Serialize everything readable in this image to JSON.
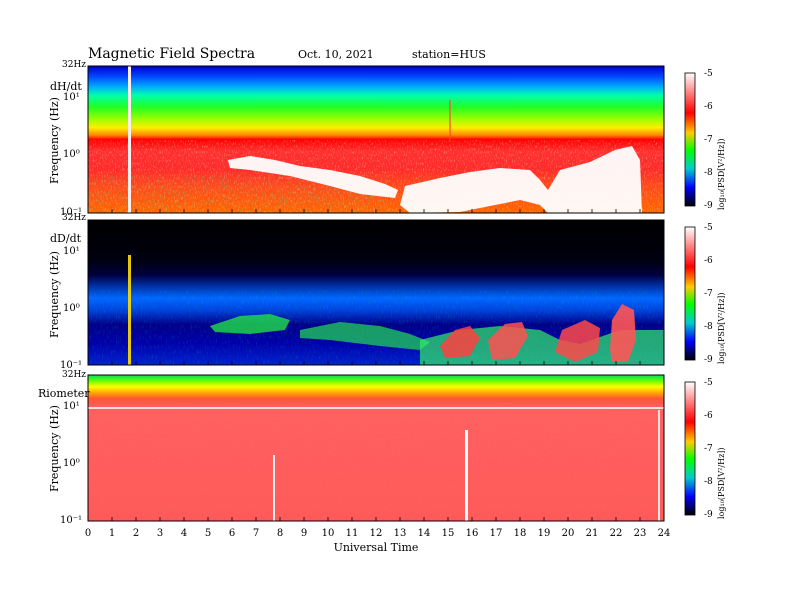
{
  "header": {
    "title": "Magnetic Field Spectra",
    "date": "Oct. 10, 2021",
    "station": "station=HUS"
  },
  "chart_data": [
    {
      "type": "heatmap",
      "panel_label": "dH/dt",
      "top_label": "32Hz",
      "ylabel": "Frequency (Hz)",
      "y_ticks": [
        "10¹",
        "10⁰",
        "10⁻¹"
      ],
      "xlabel": "Universal Time",
      "xlim": [
        0,
        24
      ],
      "colorbar": {
        "label": "log₁₀(PSD[V²/Hz])",
        "ticks": [
          "-5",
          "-6",
          "-7",
          "-8",
          "-9"
        ],
        "range": [
          -9,
          -5
        ]
      },
      "features": "Broadband red/yellow activity below ~1 Hz; saturated white regions from ~6 to 23 UT; vertical impulse near 1.8 UT"
    },
    {
      "type": "heatmap",
      "panel_label": "dD/dt",
      "top_label": "32Hz",
      "ylabel": "Frequency (Hz)",
      "y_ticks": [
        "10¹",
        "10⁰",
        "10⁻¹"
      ],
      "xlabel": "Universal Time",
      "xlim": [
        0,
        24
      ],
      "colorbar": {
        "label": "log₁₀(PSD[V²/Hz])",
        "ticks": [
          "-5",
          "-6",
          "-7",
          "-8",
          "-9"
        ],
        "range": [
          -9,
          -5
        ]
      },
      "features": "Mostly black/blue background; green and red bursts at low frequency after ~5 UT, strongest 18–23 UT"
    },
    {
      "type": "heatmap",
      "panel_label": "Riometer",
      "top_label": "32Hz",
      "ylabel": "Frequency (Hz)",
      "y_ticks": [
        "10¹",
        "10⁰",
        "10⁻¹"
      ],
      "xlabel": "Universal Time",
      "xlim": [
        0,
        24
      ],
      "x_ticks": [
        "0",
        "1",
        "2",
        "3",
        "4",
        "5",
        "6",
        "7",
        "8",
        "9",
        "10",
        "11",
        "12",
        "13",
        "14",
        "15",
        "16",
        "17",
        "18",
        "19",
        "20",
        "21",
        "22",
        "23",
        "24"
      ],
      "colorbar": {
        "label": "log₁₀(PSD[V²/Hz])",
        "ticks": [
          "-5",
          "-6",
          "-7",
          "-8",
          "-9"
        ],
        "range": [
          -9,
          -5
        ]
      },
      "features": "Green/yellow/orange bands at top, uniform salmon-red below; white vertical streaks near 7.8 and 15.8 UT"
    }
  ]
}
